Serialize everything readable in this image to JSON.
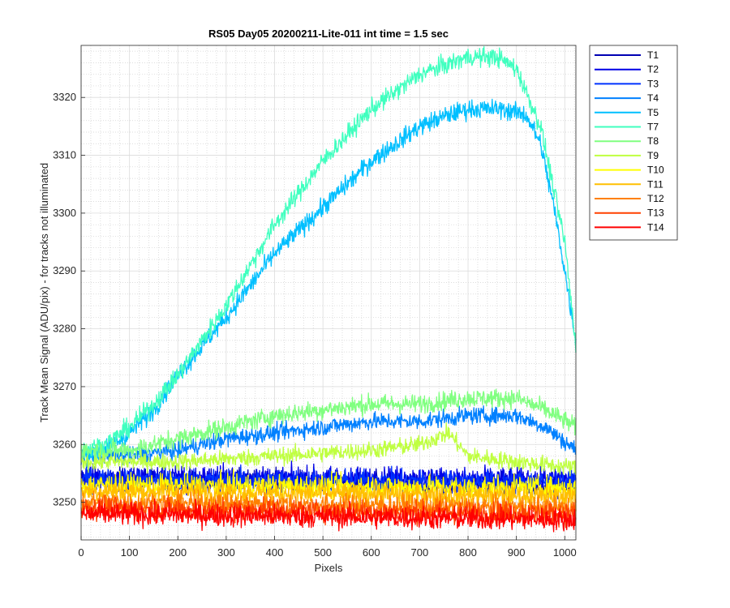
{
  "chart_data": {
    "type": "line",
    "title": "RS05 Day05 20200211-Lite-011 int time = 1.5 sec",
    "xlabel": "Pixels",
    "ylabel": "Track Mean Signal (ADU/pix) - for tracks not illuminated",
    "xlim": [
      0,
      1023
    ],
    "ylim": [
      3243.5,
      3329
    ],
    "xticks": [
      0,
      100,
      200,
      300,
      400,
      500,
      600,
      700,
      800,
      900,
      1000
    ],
    "yticks": [
      3250,
      3260,
      3270,
      3280,
      3290,
      3300,
      3310,
      3320
    ],
    "grid": "major and minor",
    "legend_position": "outside-right",
    "series": [
      {
        "name": "T1",
        "color": "#0000b3",
        "noise": 1.2,
        "points": [
          [
            0,
            3254
          ],
          [
            1023,
            3253
          ]
        ]
      },
      {
        "name": "T2",
        "color": "#0000e6",
        "noise": 1.2,
        "points": [
          [
            0,
            3254.5
          ],
          [
            1023,
            3254
          ]
        ]
      },
      {
        "name": "T3",
        "color": "#0033ff",
        "noise": 1.2,
        "points": [
          [
            0,
            3254
          ],
          [
            1023,
            3253.5
          ]
        ]
      },
      {
        "name": "T4",
        "color": "#0080ff",
        "noise": 0.9,
        "points": [
          [
            0,
            3258
          ],
          [
            100,
            3258
          ],
          [
            200,
            3259
          ],
          [
            300,
            3261
          ],
          [
            400,
            3262
          ],
          [
            500,
            3263
          ],
          [
            600,
            3264
          ],
          [
            700,
            3264
          ],
          [
            800,
            3265
          ],
          [
            900,
            3265
          ],
          [
            960,
            3263
          ],
          [
            1023,
            3259
          ]
        ]
      },
      {
        "name": "T5",
        "color": "#00bfff",
        "noise": 1.0,
        "points": [
          [
            0,
            3258
          ],
          [
            50,
            3259
          ],
          [
            100,
            3262
          ],
          [
            150,
            3266
          ],
          [
            200,
            3272
          ],
          [
            300,
            3282
          ],
          [
            400,
            3293
          ],
          [
            500,
            3301
          ],
          [
            600,
            3309
          ],
          [
            700,
            3315
          ],
          [
            760,
            3317
          ],
          [
            800,
            3318
          ],
          [
            870,
            3318
          ],
          [
            920,
            3317
          ],
          [
            950,
            3312
          ],
          [
            980,
            3300
          ],
          [
            1000,
            3290
          ],
          [
            1023,
            3278
          ]
        ]
      },
      {
        "name": "T7",
        "color": "#40ffbf",
        "noise": 1.0,
        "points": [
          [
            0,
            3259
          ],
          [
            50,
            3260
          ],
          [
            100,
            3263
          ],
          [
            150,
            3267
          ],
          [
            200,
            3272
          ],
          [
            300,
            3284
          ],
          [
            400,
            3298
          ],
          [
            500,
            3309
          ],
          [
            600,
            3318
          ],
          [
            700,
            3324
          ],
          [
            800,
            3327
          ],
          [
            860,
            3327
          ],
          [
            900,
            3325
          ],
          [
            950,
            3315
          ],
          [
            1000,
            3295
          ],
          [
            1023,
            3277
          ]
        ]
      },
      {
        "name": "T8",
        "color": "#80ff80",
        "noise": 1.0,
        "points": [
          [
            0,
            3259
          ],
          [
            100,
            3259
          ],
          [
            200,
            3261
          ],
          [
            300,
            3263
          ],
          [
            400,
            3265
          ],
          [
            500,
            3266
          ],
          [
            600,
            3267
          ],
          [
            700,
            3267
          ],
          [
            800,
            3268
          ],
          [
            900,
            3268
          ],
          [
            960,
            3266
          ],
          [
            1023,
            3263
          ]
        ]
      },
      {
        "name": "T9",
        "color": "#bfff40",
        "noise": 0.9,
        "points": [
          [
            0,
            3257
          ],
          [
            100,
            3257
          ],
          [
            200,
            3257
          ],
          [
            300,
            3257.5
          ],
          [
            400,
            3258
          ],
          [
            500,
            3258.5
          ],
          [
            600,
            3259
          ],
          [
            700,
            3260
          ],
          [
            760,
            3262
          ],
          [
            800,
            3258
          ],
          [
            900,
            3257
          ],
          [
            1023,
            3256
          ]
        ]
      },
      {
        "name": "T10",
        "color": "#ffff00",
        "noise": 1.2,
        "points": [
          [
            0,
            3253
          ],
          [
            1023,
            3252.5
          ]
        ]
      },
      {
        "name": "T11",
        "color": "#ffbf00",
        "noise": 1.2,
        "points": [
          [
            0,
            3252
          ],
          [
            1023,
            3251
          ]
        ]
      },
      {
        "name": "T12",
        "color": "#ff8000",
        "noise": 1.2,
        "points": [
          [
            0,
            3250
          ],
          [
            1023,
            3249
          ]
        ]
      },
      {
        "name": "T13",
        "color": "#ff4000",
        "noise": 1.2,
        "points": [
          [
            0,
            3249
          ],
          [
            1023,
            3248
          ]
        ]
      },
      {
        "name": "T14",
        "color": "#ff0000",
        "noise": 1.2,
        "points": [
          [
            0,
            3248
          ],
          [
            1023,
            3247
          ]
        ]
      }
    ]
  }
}
